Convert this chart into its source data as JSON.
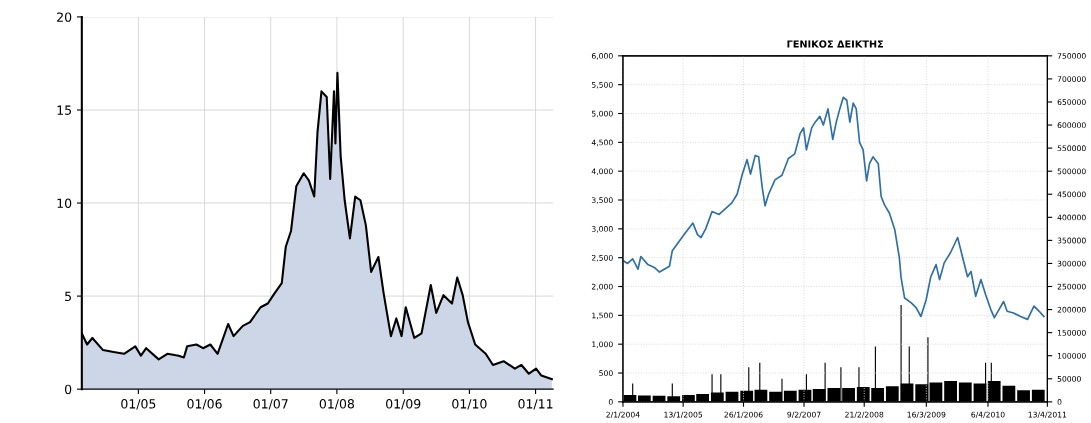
{
  "chart_data": [
    {
      "type": "area",
      "xlim": [
        "2004-02-24",
        "2011-04-08"
      ],
      "ylim": [
        0,
        20
      ],
      "yticks": [
        0,
        5,
        10,
        15,
        20
      ],
      "xticks": [
        {
          "value": "2005-01-01",
          "label": "01/05"
        },
        {
          "value": "2006-01-01",
          "label": "01/06"
        },
        {
          "value": "2007-01-01",
          "label": "01/07"
        },
        {
          "value": "2008-01-01",
          "label": "01/08"
        },
        {
          "value": "2009-01-01",
          "label": "01/09"
        },
        {
          "value": "2010-01-01",
          "label": "01/10"
        },
        {
          "value": "2011-01-01",
          "label": "01/11"
        }
      ],
      "grid": true,
      "series": [
        {
          "color": "#cdd6e6",
          "x": [
            "2004-02-24",
            "2004-03-24",
            "2004-04-22",
            "2004-06-20",
            "2004-08-17",
            "2004-10-14",
            "2004-12-15",
            "2005-01-15",
            "2005-02-13",
            "2005-04-23",
            "2005-06-10",
            "2005-08-11",
            "2005-09-09",
            "2005-09-27",
            "2005-11-17",
            "2005-12-24",
            "2006-02-02",
            "2006-03-14",
            "2006-05-11",
            "2006-06-10",
            "2006-07-31",
            "2006-09-09",
            "2006-11-06",
            "2006-12-16",
            "2007-01-22",
            "2007-03-03",
            "2007-03-25",
            "2007-04-23",
            "2007-05-22",
            "2007-07-02",
            "2007-07-31",
            "2007-08-29",
            "2007-09-16",
            "2007-10-08",
            "2007-11-06",
            "2007-11-25",
            "2007-12-16",
            "2007-12-24",
            "2008-01-04",
            "2008-01-22",
            "2008-02-13",
            "2008-03-13",
            "2008-04-11",
            "2008-05-10",
            "2008-06-09",
            "2008-07-08",
            "2008-08-17",
            "2008-09-15",
            "2008-10-25",
            "2008-11-24",
            "2008-12-23",
            "2009-01-15",
            "2009-03-03",
            "2009-04-12",
            "2009-06-02",
            "2009-07-02",
            "2009-08-11",
            "2009-09-27",
            "2009-10-26",
            "2009-11-25",
            "2009-12-24",
            "2010-02-02",
            "2010-04-01",
            "2010-05-11",
            "2010-07-09",
            "2010-09-09",
            "2010-10-15",
            "2010-11-25",
            "2011-01-04",
            "2011-02-02",
            "2011-04-01"
          ],
          "values": [
            3.0,
            2.4,
            2.75,
            2.1,
            2.0,
            1.9,
            2.3,
            1.8,
            2.2,
            1.6,
            1.9,
            1.8,
            1.7,
            2.3,
            2.4,
            2.2,
            2.4,
            1.9,
            3.5,
            2.85,
            3.4,
            3.6,
            4.4,
            4.6,
            5.15,
            5.7,
            7.65,
            8.5,
            10.9,
            11.6,
            11.2,
            10.35,
            13.8,
            16.0,
            15.7,
            11.3,
            16.0,
            13.2,
            17.0,
            12.5,
            10.15,
            8.1,
            10.35,
            10.15,
            8.8,
            6.3,
            7.1,
            5.15,
            2.85,
            3.8,
            2.85,
            4.4,
            2.75,
            3.0,
            5.6,
            4.1,
            5.05,
            4.6,
            6.0,
            5.05,
            3.6,
            2.4,
            1.9,
            1.3,
            1.5,
            1.1,
            1.3,
            0.83,
            1.1,
            0.73,
            0.54
          ]
        }
      ]
    },
    {
      "type": "line",
      "title": "ΓΕΝΙΚΟΣ ΔΕΙΚΤΗΣ",
      "xlim": [
        "2004-01-02",
        "2011-04-13"
      ],
      "ylim": [
        0,
        6000
      ],
      "y2lim": [
        0,
        750000
      ],
      "grid": true,
      "line_style": "solid",
      "xticks": [
        {
          "value": "2004-01-02",
          "label": "2/1/2004"
        },
        {
          "value": "2005-01-13",
          "label": "13/1/2005"
        },
        {
          "value": "2006-01-26",
          "label": "26/1/2006"
        },
        {
          "value": "2007-02-09",
          "label": "9/2/2007"
        },
        {
          "value": "2008-02-21",
          "label": "21/2/2008"
        },
        {
          "value": "2009-03-16",
          "label": "16/3/2009"
        },
        {
          "value": "2010-04-06",
          "label": "6/4/2010"
        },
        {
          "value": "2011-04-13",
          "label": "13/4/2011"
        }
      ],
      "yticks": [
        {
          "value": 0,
          "label": "0"
        },
        {
          "value": 500,
          "label": "500"
        },
        {
          "value": 1000,
          "label": "1,000"
        },
        {
          "value": 1500,
          "label": "1,500"
        },
        {
          "value": 2000,
          "label": "2,000"
        },
        {
          "value": 2500,
          "label": "2,500"
        },
        {
          "value": 3000,
          "label": "3,000"
        },
        {
          "value": 3500,
          "label": "3,500"
        },
        {
          "value": 4000,
          "label": "4,000"
        },
        {
          "value": 4500,
          "label": "4,500"
        },
        {
          "value": 5000,
          "label": "5,000"
        },
        {
          "value": 5500,
          "label": "5,500"
        },
        {
          "value": 6000,
          "label": "6,000"
        }
      ],
      "y2ticks": [
        0,
        50000,
        100000,
        150000,
        200000,
        250000,
        300000,
        350000,
        400000,
        450000,
        500000,
        550000,
        600000,
        650000,
        700000,
        750000
      ],
      "series": [
        {
          "type": "bar",
          "axis": "y2",
          "color": "#000000",
          "x": [
            "2004-02-15",
            "2004-05-15",
            "2004-08-15",
            "2004-11-15",
            "2005-02-15",
            "2005-05-15",
            "2005-08-15",
            "2005-11-15",
            "2006-02-15",
            "2006-05-15",
            "2006-08-15",
            "2006-11-15",
            "2007-02-15",
            "2007-05-15",
            "2007-08-15",
            "2007-11-15",
            "2008-02-15",
            "2008-05-15",
            "2008-08-15",
            "2008-11-15",
            "2009-02-15",
            "2009-05-15",
            "2009-08-15",
            "2009-11-15",
            "2010-02-15",
            "2010-05-15",
            "2010-08-15",
            "2010-11-15",
            "2011-02-15"
          ],
          "values": [
            15000,
            14000,
            13000,
            12000,
            15000,
            17000,
            20000,
            22000,
            24000,
            26000,
            22000,
            24000,
            26000,
            28000,
            30000,
            30000,
            32000,
            30000,
            34000,
            40000,
            38000,
            42000,
            45000,
            42000,
            40000,
            45000,
            35000,
            25000,
            26000
          ]
        },
        {
          "type": "bar",
          "axis": "y2",
          "color": "#000000",
          "x": [
            "2004-03-03",
            "2004-11-06",
            "2005-07-13",
            "2005-09-06",
            "2006-02-28",
            "2006-05-08",
            "2006-09-24",
            "2007-02-24",
            "2007-06-21",
            "2007-09-28",
            "2008-01-19",
            "2008-05-01",
            "2008-10-09",
            "2008-11-29",
            "2009-03-26",
            "2010-03-22",
            "2010-04-27"
          ],
          "values": [
            40000,
            40000,
            60000,
            60000,
            75000,
            85000,
            50000,
            60000,
            85000,
            75000,
            75000,
            120000,
            210000,
            120000,
            140000,
            85000,
            85000
          ]
        },
        {
          "color": "#2e6fa8",
          "x": [
            "2004-01-02",
            "2004-01-31",
            "2004-03-03",
            "2004-04-05",
            "2004-04-23",
            "2004-06-06",
            "2004-07-16",
            "2004-08-18",
            "2004-10-19",
            "2004-11-06",
            "2005-01-19",
            "2005-03-15",
            "2005-04-13",
            "2005-05-05",
            "2005-06-03",
            "2005-07-13",
            "2005-08-26",
            "2005-10-05",
            "2005-11-14",
            "2005-12-17",
            "2006-01-19",
            "2006-02-17",
            "2006-03-11",
            "2006-04-09",
            "2006-05-01",
            "2006-05-23",
            "2006-06-10",
            "2006-07-02",
            "2006-08-11",
            "2006-09-24",
            "2006-11-03",
            "2006-12-13",
            "2007-01-15",
            "2007-02-06",
            "2007-02-24",
            "2007-03-29",
            "2007-04-20",
            "2007-05-19",
            "2007-06-10",
            "2007-07-09",
            "2007-08-08",
            "2007-08-30",
            "2007-09-21",
            "2007-10-13",
            "2007-11-04",
            "2007-11-23",
            "2007-12-14",
            "2008-01-02",
            "2008-01-23",
            "2008-02-14",
            "2008-03-07",
            "2008-03-25",
            "2008-04-16",
            "2008-05-19",
            "2008-06-06",
            "2008-06-28",
            "2008-07-28",
            "2008-08-30",
            "2008-09-28",
            "2008-10-09",
            "2008-10-31",
            "2008-12-10",
            "2009-01-12",
            "2009-02-10",
            "2009-03-15",
            "2009-04-13",
            "2009-05-16",
            "2009-06-07",
            "2009-07-06",
            "2009-08-15",
            "2009-09-28",
            "2009-10-27",
            "2009-11-29",
            "2009-12-21",
            "2010-01-19",
            "2010-02-21",
            "2010-03-22",
            "2010-04-24",
            "2010-05-16",
            "2010-06-14",
            "2010-07-13",
            "2010-08-04",
            "2010-09-13",
            "2010-10-27",
            "2010-12-10",
            "2011-01-19",
            "2011-02-21",
            "2011-03-22"
          ],
          "values": [
            2450,
            2400,
            2480,
            2300,
            2520,
            2380,
            2330,
            2250,
            2350,
            2620,
            2900,
            3100,
            2900,
            2850,
            3000,
            3300,
            3250,
            3350,
            3450,
            3600,
            3950,
            4200,
            3950,
            4270,
            4250,
            3720,
            3400,
            3600,
            3850,
            3930,
            4220,
            4300,
            4650,
            4750,
            4370,
            4750,
            4850,
            4950,
            4800,
            5080,
            4550,
            4850,
            5080,
            5280,
            5230,
            4850,
            5180,
            5080,
            4500,
            4370,
            3830,
            4130,
            4250,
            4130,
            3560,
            3410,
            3270,
            2990,
            2500,
            2150,
            1800,
            1720,
            1630,
            1480,
            1770,
            2170,
            2380,
            2120,
            2410,
            2590,
            2850,
            2530,
            2170,
            2260,
            1830,
            2120,
            1860,
            1600,
            1460,
            1600,
            1740,
            1570,
            1540,
            1480,
            1430,
            1660,
            1570,
            1480
          ]
        }
      ]
    }
  ]
}
